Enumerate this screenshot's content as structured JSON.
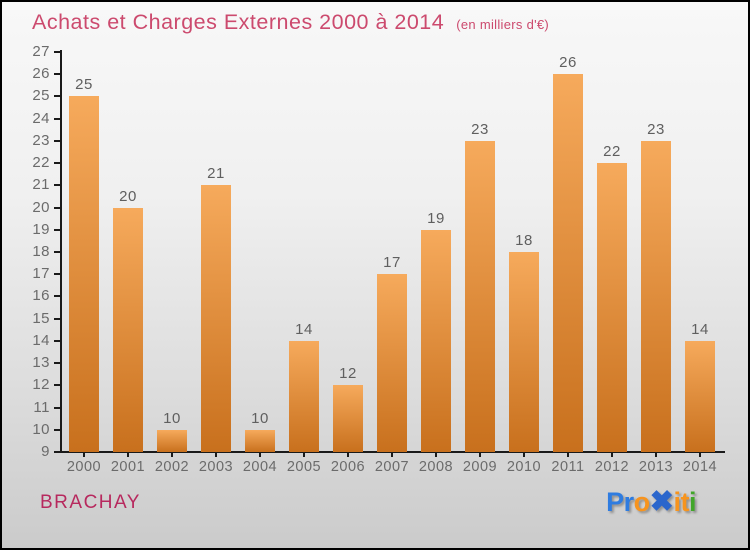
{
  "header": {
    "title": "Achats et Charges Externes 2000 à 2014",
    "subtitle": "(en milliers d'€)"
  },
  "chart_data": {
    "type": "bar",
    "title": "Achats et Charges Externes 2000 à 2014",
    "subtitle": "(en milliers d'€)",
    "categories": [
      "2000",
      "2001",
      "2002",
      "2003",
      "2004",
      "2005",
      "2006",
      "2007",
      "2008",
      "2009",
      "2010",
      "2011",
      "2012",
      "2013",
      "2014"
    ],
    "values": [
      25,
      20,
      10,
      21,
      10,
      14,
      12,
      17,
      19,
      23,
      18,
      26,
      22,
      23,
      14
    ],
    "xlabel": "",
    "ylabel": "",
    "ylim": [
      9,
      27
    ],
    "ytick_step": 1,
    "grid": false,
    "legend": false,
    "value_labels": true,
    "bar_gradient_top": "#f6aa5c",
    "bar_gradient_bottom": "#c8701d"
  },
  "footer": {
    "location": "BRACHAY",
    "logo_letters": [
      {
        "char": "P",
        "color": "#2f7ce0",
        "name": "logo-letter-p"
      },
      {
        "char": "r",
        "color": "#2f7ce0",
        "name": "logo-letter-r"
      },
      {
        "char": "o",
        "color": "#f7941e",
        "name": "logo-letter-o"
      },
      {
        "char": "✖",
        "color": "#2b66cc",
        "big": true,
        "name": "logo-x-icon"
      },
      {
        "char": "i",
        "color": "#f7941e",
        "name": "logo-letter-i1"
      },
      {
        "char": "t",
        "color": "#f7941e",
        "name": "logo-letter-t"
      },
      {
        "char": "i",
        "color": "#41a62a",
        "name": "logo-letter-i2"
      }
    ]
  },
  "colors": {
    "title": "#cc4a6e",
    "location": "#b7295e",
    "axis": "#1a1a1a",
    "tick_label": "#6b6b6b",
    "value_label": "#5f5f5f",
    "background_top": "#f8f8f8",
    "background_bottom": "#cbcbcb"
  }
}
